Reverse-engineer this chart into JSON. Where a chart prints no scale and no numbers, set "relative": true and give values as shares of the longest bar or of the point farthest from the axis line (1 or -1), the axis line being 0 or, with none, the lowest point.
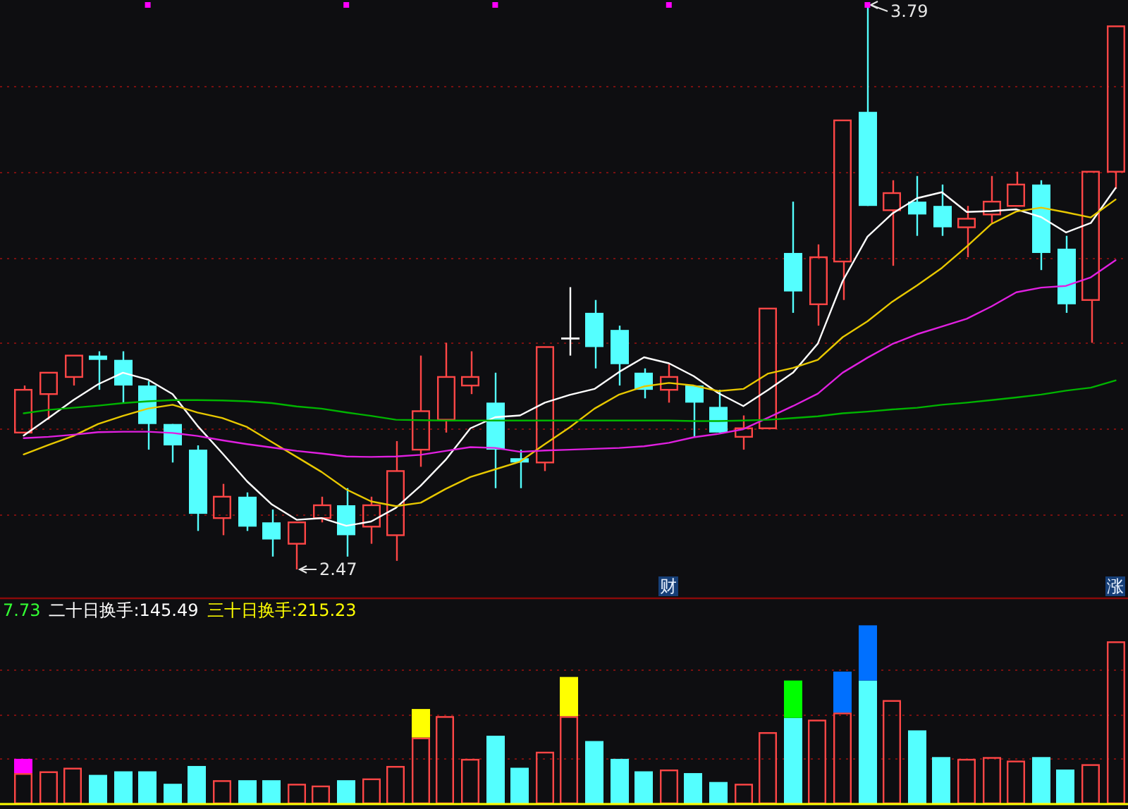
{
  "chart_data": [
    {
      "type": "candlestick",
      "categories": [
        null,
        null,
        null,
        null,
        null,
        null,
        null,
        null,
        null,
        null,
        null,
        null,
        null,
        null,
        null,
        null,
        null,
        null,
        null,
        null,
        null,
        null,
        null,
        null,
        null,
        null,
        "财",
        null,
        null,
        null,
        null,
        null,
        null,
        null,
        null,
        null,
        null,
        null,
        null,
        null,
        null,
        null,
        null,
        null,
        "涨"
      ],
      "ohlc": [
        [
          2.79,
          2.9,
          2.79,
          2.89
        ],
        [
          2.88,
          2.93,
          2.82,
          2.93
        ],
        [
          2.92,
          2.97,
          2.9,
          2.97
        ],
        [
          2.97,
          2.98,
          2.89,
          2.96
        ],
        [
          2.96,
          2.98,
          2.86,
          2.9
        ],
        [
          2.9,
          2.91,
          2.75,
          2.81
        ],
        [
          2.81,
          2.81,
          2.72,
          2.76
        ],
        [
          2.75,
          2.76,
          2.56,
          2.6
        ],
        [
          2.59,
          2.67,
          2.55,
          2.64
        ],
        [
          2.64,
          2.65,
          2.56,
          2.57
        ],
        [
          2.58,
          2.61,
          2.5,
          2.54
        ],
        [
          2.53,
          2.58,
          2.47,
          2.58
        ],
        [
          2.59,
          2.64,
          2.58,
          2.62
        ],
        [
          2.62,
          2.66,
          2.5,
          2.55
        ],
        [
          2.57,
          2.64,
          2.53,
          2.62
        ],
        [
          2.55,
          2.77,
          2.49,
          2.7
        ],
        [
          2.75,
          2.97,
          2.71,
          2.84
        ],
        [
          2.82,
          3.0,
          2.79,
          2.92
        ],
        [
          2.9,
          2.98,
          2.88,
          2.92
        ],
        [
          2.86,
          2.93,
          2.66,
          2.75
        ],
        [
          2.73,
          2.75,
          2.66,
          2.72
        ],
        [
          2.72,
          2.99,
          2.7,
          2.99
        ],
        [
          3.01,
          3.13,
          2.97,
          3.01
        ],
        [
          3.07,
          3.1,
          2.94,
          2.99
        ],
        [
          3.03,
          3.04,
          2.9,
          2.95
        ],
        [
          2.93,
          2.94,
          2.87,
          2.89
        ],
        [
          2.89,
          2.95,
          2.86,
          2.92
        ],
        [
          2.9,
          2.9,
          2.78,
          2.86
        ],
        [
          2.85,
          2.89,
          2.79,
          2.79
        ],
        [
          2.78,
          2.83,
          2.75,
          2.8
        ],
        [
          2.8,
          3.08,
          2.8,
          3.08
        ],
        [
          3.21,
          3.33,
          3.07,
          3.12
        ],
        [
          3.09,
          3.23,
          3.04,
          3.2
        ],
        [
          3.19,
          3.52,
          3.1,
          3.52
        ],
        [
          3.54,
          3.79,
          3.32,
          3.32
        ],
        [
          3.31,
          3.38,
          3.18,
          3.35
        ],
        [
          3.33,
          3.39,
          3.25,
          3.3
        ],
        [
          3.32,
          3.37,
          3.25,
          3.27
        ],
        [
          3.27,
          3.32,
          3.2,
          3.29
        ],
        [
          3.3,
          3.39,
          3.28,
          3.33
        ],
        [
          3.32,
          3.4,
          3.32,
          3.37
        ],
        [
          3.37,
          3.38,
          3.17,
          3.21
        ],
        [
          3.22,
          3.25,
          3.07,
          3.09
        ],
        [
          3.1,
          3.4,
          3.0,
          3.4
        ],
        [
          3.4,
          3.74,
          3.36,
          3.74
        ]
      ],
      "colors": [
        "#ff4646",
        "#ff4646",
        "#ff4646",
        "#54ffff",
        "#54ffff",
        "#54ffff",
        "#54ffff",
        "#54ffff",
        "#ff4646",
        "#54ffff",
        "#54ffff",
        "#ff4646",
        "#ff4646",
        "#54ffff",
        "#ff4646",
        "#ff4646",
        "#ff4646",
        "#ff4646",
        "#ff4646",
        "#54ffff",
        "#54ffff",
        "#ff4646",
        "#ffffff",
        "#54ffff",
        "#54ffff",
        "#54ffff",
        "#ff4646",
        "#54ffff",
        "#54ffff",
        "#ff4646",
        "#ff4646",
        "#54ffff",
        "#ff4646",
        "#ff4646",
        "#54ffff",
        "#ff4646",
        "#54ffff",
        "#54ffff",
        "#ff4646",
        "#ff4646",
        "#ff4646",
        "#54ffff",
        "#54ffff",
        "#ff4646",
        "#ff4646"
      ],
      "value_labels": [
        null,
        null,
        null,
        null,
        null,
        null,
        null,
        null,
        null,
        null,
        null,
        "2.47",
        null,
        null,
        null,
        null,
        null,
        null,
        null,
        null,
        null,
        null,
        null,
        null,
        null,
        null,
        null,
        null,
        null,
        null,
        null,
        null,
        null,
        null,
        "3.79",
        null,
        null,
        null,
        null,
        null,
        null,
        null,
        null,
        null,
        null
      ],
      "series": [
        {
          "type": "line",
          "color": "#ffffff",
          "values": [
            2.783,
            2.824,
            2.866,
            2.903,
            2.93,
            2.914,
            2.88,
            2.806,
            2.742,
            2.676,
            2.622,
            2.586,
            2.59,
            2.572,
            2.582,
            2.614,
            2.666,
            2.726,
            2.8,
            2.826,
            2.83,
            2.86,
            2.878,
            2.892,
            2.932,
            2.966,
            2.952,
            2.922,
            2.882,
            2.852,
            2.89,
            2.93,
            2.998,
            3.144,
            3.248,
            3.302,
            3.338,
            3.352,
            3.306,
            3.308,
            3.312,
            3.294,
            3.258,
            3.28,
            3.362
          ]
        },
        {
          "type": "line",
          "color": "#e8c800",
          "values": [
            2.739,
            2.761,
            2.782,
            2.81,
            2.829,
            2.846,
            2.855,
            2.837,
            2.824,
            2.803,
            2.768,
            2.733,
            2.698,
            2.657,
            2.629,
            2.618,
            2.626,
            2.658,
            2.686,
            2.704,
            2.722,
            2.763,
            2.802,
            2.846,
            2.879,
            2.898,
            2.906,
            2.9,
            2.887,
            2.892,
            2.928,
            2.941,
            2.96,
            3.013,
            3.05,
            3.096,
            3.134,
            3.175,
            3.225,
            3.278,
            3.307,
            3.316,
            3.305,
            3.293,
            3.335
          ]
        },
        {
          "type": "line",
          "color": "#e020e0",
          "values": [
            2.777,
            2.78,
            2.785,
            2.791,
            2.792,
            2.792,
            2.789,
            2.782,
            2.772,
            2.763,
            2.755,
            2.747,
            2.741,
            2.734,
            2.733,
            2.734,
            2.738,
            2.747,
            2.756,
            2.754,
            2.745,
            2.748,
            2.75,
            2.752,
            2.754,
            2.758,
            2.766,
            2.779,
            2.787,
            2.798,
            2.825,
            2.852,
            2.881,
            2.93,
            2.965,
            2.997,
            3.02,
            3.038,
            3.056,
            3.085,
            3.118,
            3.129,
            3.133,
            3.153,
            3.193
          ]
        },
        {
          "type": "line",
          "color": "#00b400",
          "values": [
            2.835,
            2.843,
            2.848,
            2.853,
            2.859,
            2.863,
            2.866,
            2.866,
            2.865,
            2.863,
            2.859,
            2.851,
            2.846,
            2.837,
            2.829,
            2.82,
            2.819,
            2.818,
            2.818,
            2.818,
            2.818,
            2.818,
            2.818,
            2.818,
            2.818,
            2.818,
            2.818,
            2.817,
            2.817,
            2.818,
            2.82,
            2.824,
            2.828,
            2.835,
            2.839,
            2.844,
            2.848,
            2.855,
            2.86,
            2.866,
            2.872,
            2.879,
            2.888,
            2.895,
            2.912
          ]
        },
        {
          "type": "scatter",
          "color": "#ff00ff",
          "marker": "square",
          "values": [
            null,
            null,
            null,
            null,
            null,
            3.79,
            null,
            null,
            null,
            null,
            null,
            null,
            null,
            3.79,
            null,
            null,
            null,
            null,
            null,
            3.79,
            null,
            null,
            null,
            null,
            null,
            null,
            3.79,
            null,
            null,
            null,
            null,
            null,
            null,
            null,
            3.79,
            null,
            null,
            null,
            null,
            null,
            null,
            null,
            null,
            null,
            null
          ]
        }
      ],
      "yticks": [
        {
          "value": 2.6,
          "label": null
        },
        {
          "value": 2.8,
          "label": null
        },
        {
          "value": 3.0,
          "label": null
        },
        {
          "value": 3.2,
          "label": null
        },
        {
          "value": 3.4,
          "label": null
        },
        {
          "value": 3.6,
          "label": null
        }
      ],
      "grid": "y",
      "tick_labels": "x"
    },
    {
      "type": "bar",
      "relative": true,
      "stacked": true,
      "categories": [
        null,
        null,
        null,
        null,
        null,
        null,
        null,
        null,
        null,
        null,
        null,
        null,
        null,
        null,
        null,
        null,
        null,
        null,
        null,
        null,
        null,
        null,
        null,
        null,
        null,
        null,
        null,
        null,
        null,
        null,
        null,
        null,
        null,
        null,
        null,
        null,
        null,
        null,
        null,
        null,
        null,
        null,
        null,
        null,
        null
      ],
      "series": [
        {
          "colors": [
            "#ff4646",
            "#ff4646",
            "#ff4646",
            "#54ffff",
            "#54ffff",
            "#54ffff",
            "#54ffff",
            "#54ffff",
            "#ff4646",
            "#54ffff",
            "#54ffff",
            "#ff4646",
            "#ff4646",
            "#54ffff",
            "#ff4646",
            "#ff4646",
            "#ff4646",
            "#ff4646",
            "#ff4646",
            "#54ffff",
            "#54ffff",
            "#ff4646",
            "#ff4646",
            "#54ffff",
            "#54ffff",
            "#54ffff",
            "#ff4646",
            "#54ffff",
            "#54ffff",
            "#ff4646",
            "#ff4646",
            "#54ffff",
            "#ff4646",
            "#ff4646",
            "#54ffff",
            "#ff4646",
            "#54ffff",
            "#54ffff",
            "#ff4646",
            "#ff4646",
            "#ff4646",
            "#54ffff",
            "#54ffff",
            "#ff4646",
            "#ff4646"
          ],
          "values": [
            0.17,
            0.18,
            0.2,
            0.16,
            0.18,
            0.18,
            0.11,
            0.21,
            0.13,
            0.13,
            0.13,
            0.11,
            0.1,
            0.13,
            0.14,
            0.21,
            0.37,
            0.49,
            0.25,
            0.38,
            0.2,
            0.29,
            0.49,
            0.35,
            0.25,
            0.18,
            0.19,
            0.17,
            0.12,
            0.11,
            0.4,
            0.48,
            0.47,
            0.51,
            0.69,
            0.58,
            0.41,
            0.26,
            0.25,
            0.26,
            0.24,
            0.26,
            0.19,
            0.22,
            0.91
          ]
        },
        {
          "colors": [
            "#ff00ff",
            null,
            null,
            null,
            null,
            null,
            null,
            null,
            null,
            null,
            null,
            null,
            null,
            null,
            null,
            null,
            "#ffff00",
            null,
            null,
            null,
            null,
            null,
            "#ffff00",
            null,
            null,
            null,
            null,
            null,
            null,
            null,
            null,
            "#00ff00",
            null,
            "#0070ff",
            "#0070ff",
            null,
            null,
            null,
            null,
            null,
            null,
            null,
            null,
            null,
            null
          ],
          "values": [
            0.08,
            null,
            null,
            null,
            null,
            null,
            null,
            null,
            null,
            null,
            null,
            null,
            null,
            null,
            null,
            null,
            0.16,
            null,
            null,
            null,
            null,
            null,
            0.22,
            null,
            null,
            null,
            null,
            null,
            null,
            null,
            null,
            0.21,
            null,
            0.23,
            0.31,
            null,
            null,
            null,
            null,
            null,
            null,
            null,
            null,
            null,
            null
          ]
        }
      ],
      "ref_lines": [
        {
          "axis": "y",
          "value": 0.25,
          "color": "#7a1010",
          "line_style": "dotted"
        },
        {
          "axis": "y",
          "value": 0.5,
          "color": "#7a1010",
          "line_style": "dotted"
        },
        {
          "axis": "y",
          "value": 0.75,
          "color": "#7a1010",
          "line_style": "dotted"
        }
      ],
      "annotations": [
        "7.73",
        "二十日换手:145.49",
        "三十日换手:215.23"
      ]
    }
  ]
}
